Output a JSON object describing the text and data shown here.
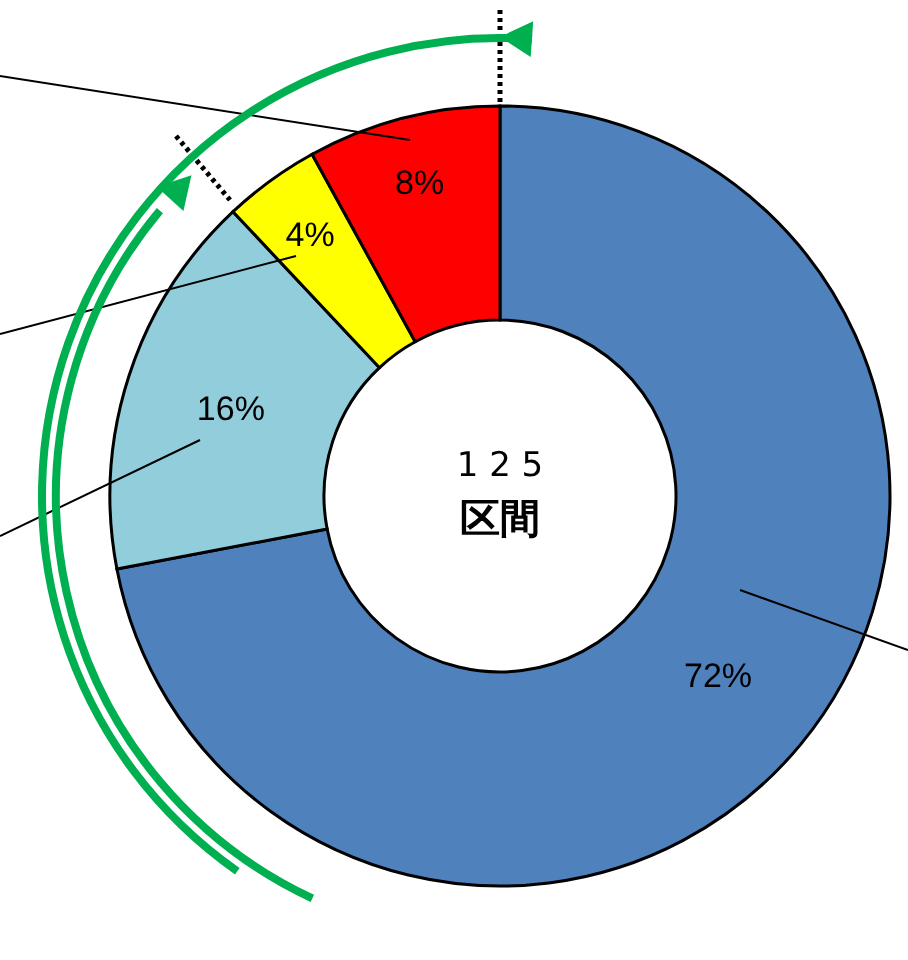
{
  "chart_data": {
    "type": "donut",
    "categories": [
      null,
      null,
      null,
      null
    ],
    "values": [
      72,
      16,
      4,
      8
    ],
    "colors": [
      "#4f81bd",
      "#92cddc",
      "#ffff00",
      "#ff0000"
    ],
    "value_labels": [
      "72%",
      "16%",
      "4%",
      "8%"
    ],
    "annotations": [
      "1 2 5",
      "区間"
    ],
    "legend": false
  }
}
